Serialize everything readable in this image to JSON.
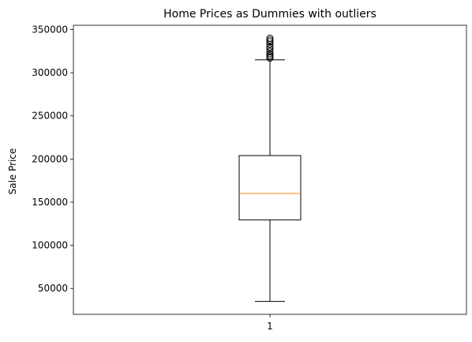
{
  "chart_data": {
    "type": "box",
    "title": "Home Prices as Dummies with outliers",
    "xlabel": "",
    "ylabel": "Sale Price",
    "categories": [
      "1"
    ],
    "ylim": [
      20000,
      355000
    ],
    "yticks": [
      "50000",
      "100000",
      "150000",
      "200000",
      "250000",
      "300000",
      "350000"
    ],
    "yticks_values": [
      50000,
      100000,
      150000,
      200000,
      250000,
      300000,
      350000
    ],
    "grid": false,
    "boxes": [
      {
        "category": "1",
        "whisker_low": 35000,
        "q1": 129500,
        "median": 160000,
        "q3": 204000,
        "whisker_high": 315000,
        "outliers": [
          317000,
          318500,
          320000,
          322000,
          325000,
          328000,
          330000,
          333000,
          336000,
          338000,
          340000
        ]
      }
    ],
    "colors": {
      "box": "#000000",
      "median": "#ff7f0e",
      "outlier_edge": "#000000"
    }
  }
}
